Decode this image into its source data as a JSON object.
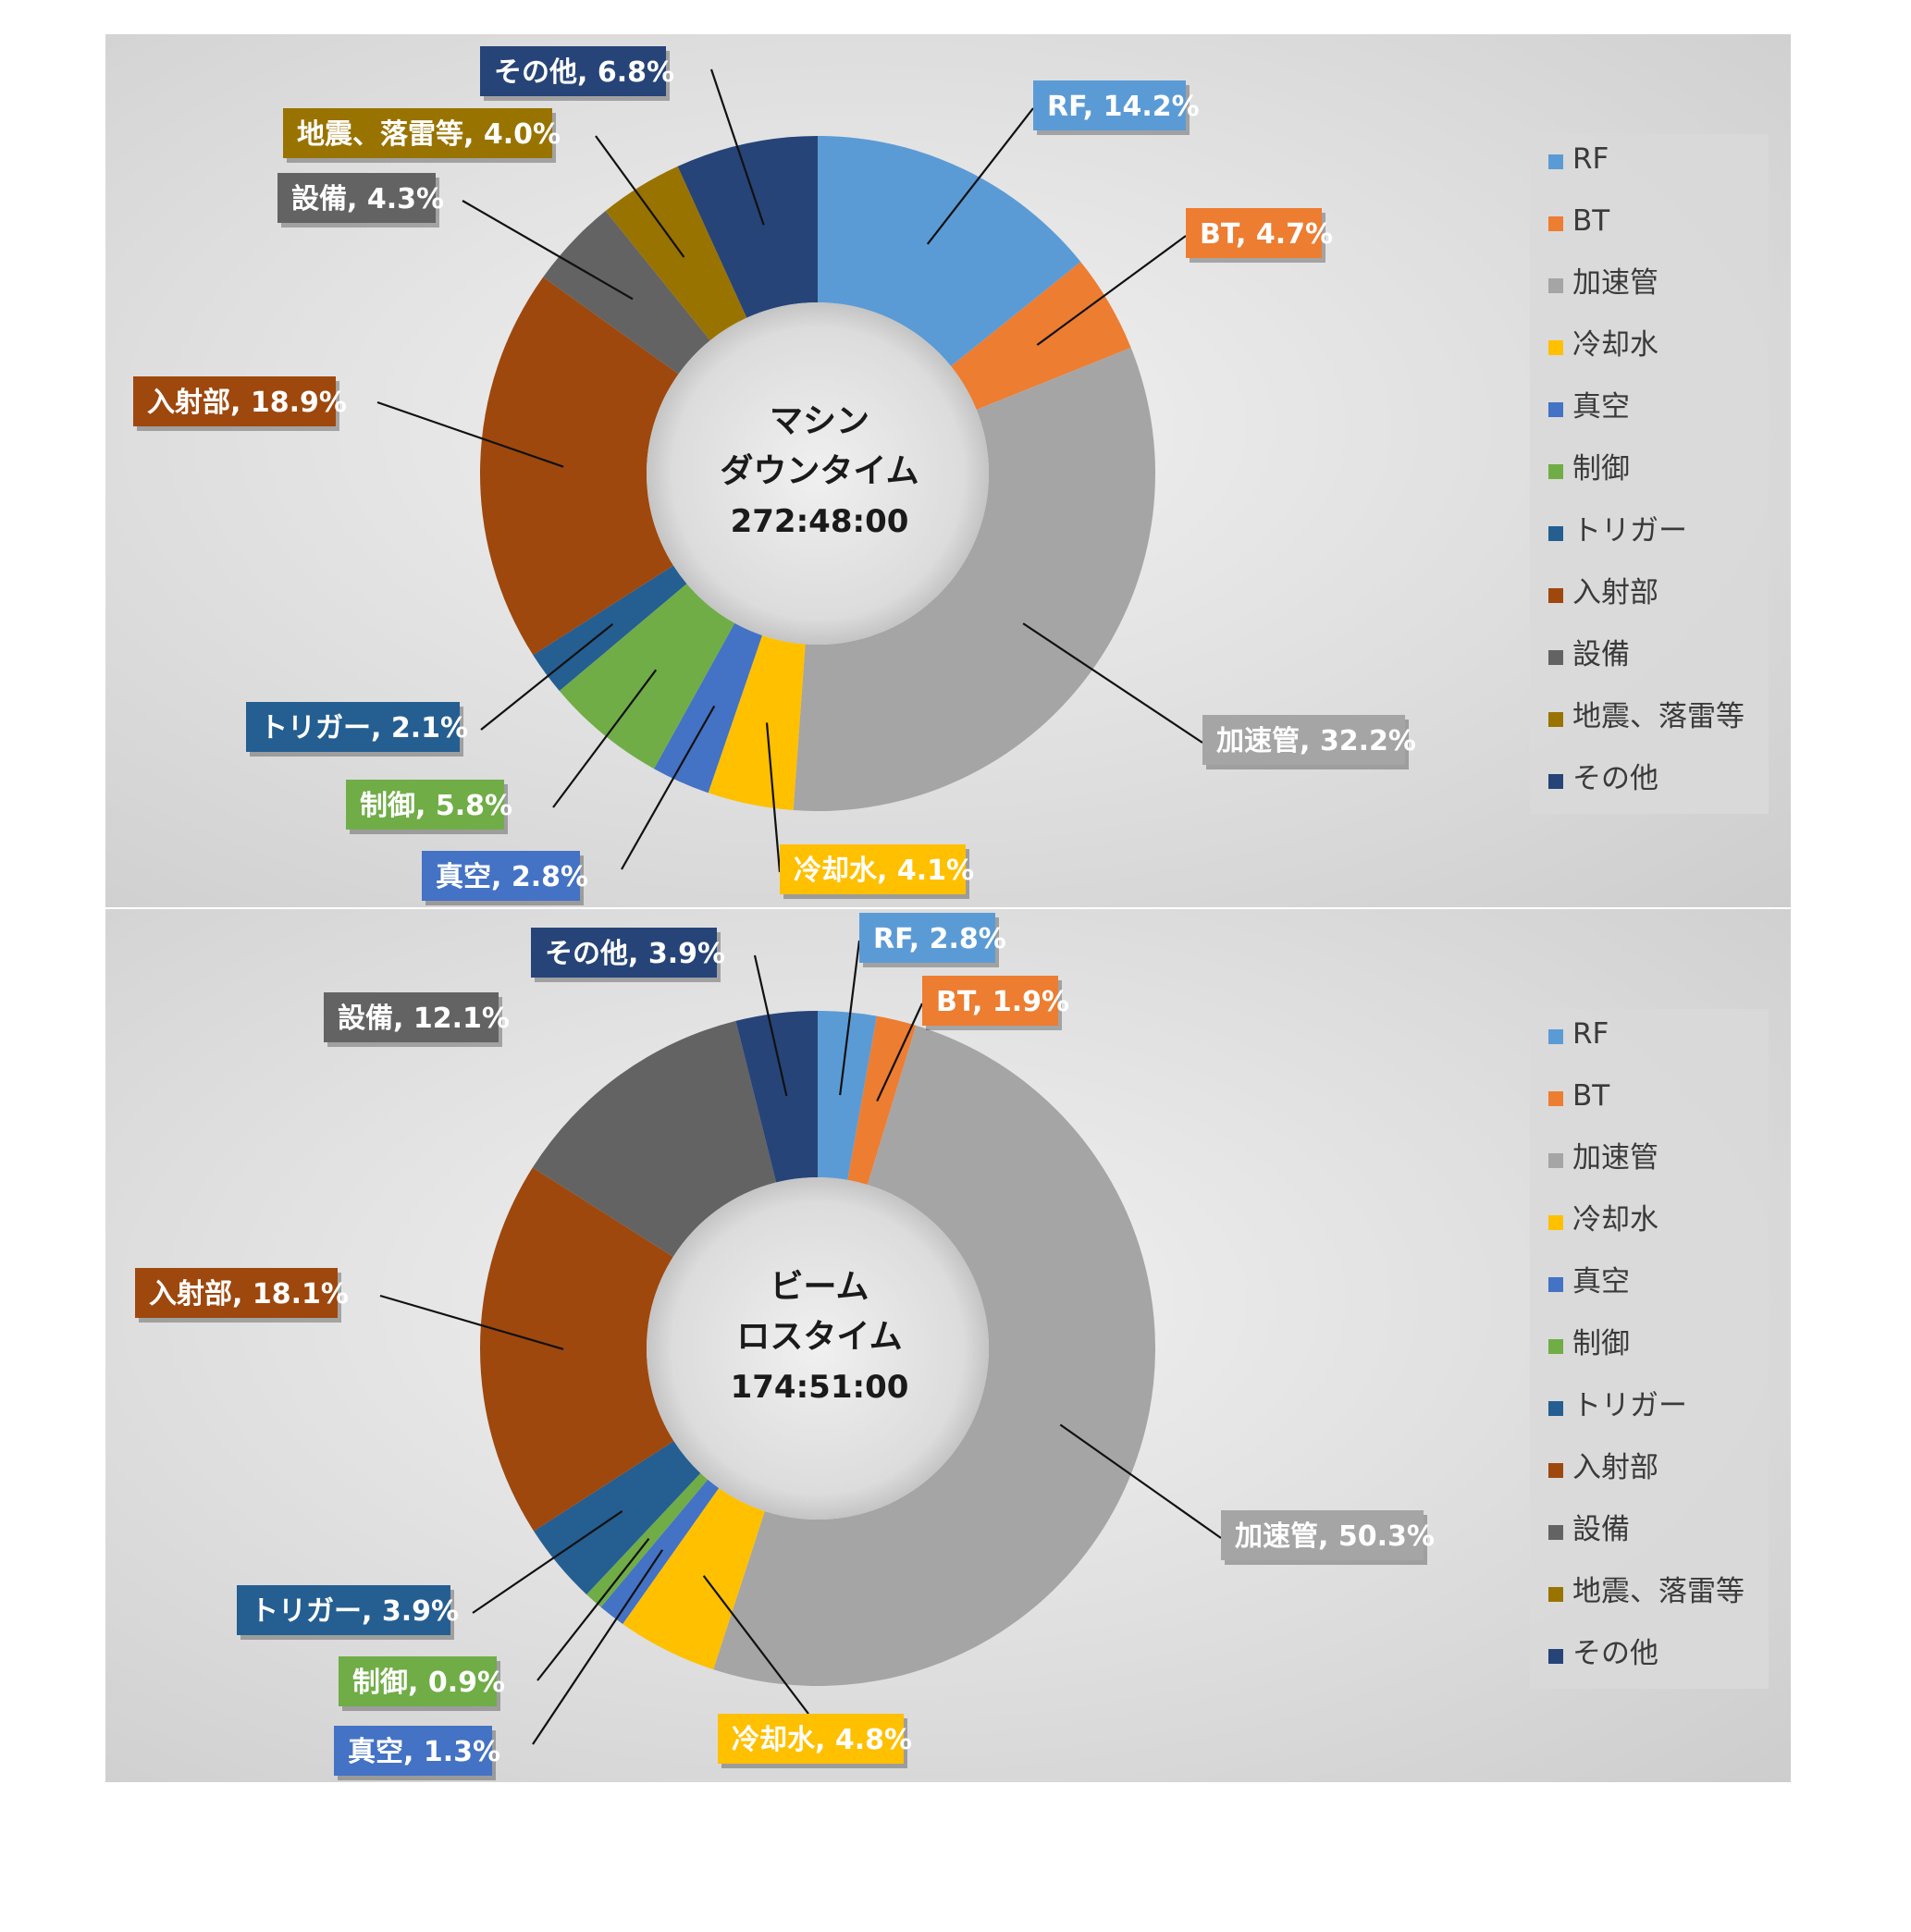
{
  "colors": {
    "RF": "#5b9bd5",
    "BT": "#ed7d31",
    "加速管": "#a5a5a5",
    "冷却水": "#ffc000",
    "真空": "#4472c4",
    "制御": "#70ad47",
    "トリガー": "#255e91",
    "入射部": "#9e480e",
    "設備": "#636363",
    "地震、落雷等": "#997300",
    "その他": "#264478"
  },
  "chart_data": [
    {
      "type": "pie",
      "variant": "donut",
      "center_lines": [
        "マシン",
        "ダウンタイム",
        "272:48:00"
      ],
      "legend": [
        "RF",
        "BT",
        "加速管",
        "冷却水",
        "真空",
        "制御",
        "トリガー",
        "入射部",
        "設備",
        "地震、落雷等",
        "その他"
      ],
      "legend_position": "right",
      "slices": [
        {
          "label": "RF",
          "value": 14.2,
          "text": "RF, 14.2%"
        },
        {
          "label": "BT",
          "value": 4.7,
          "text": "BT, 4.7%"
        },
        {
          "label": "加速管",
          "value": 32.2,
          "text": "加速管, 32.2%"
        },
        {
          "label": "冷却水",
          "value": 4.1,
          "text": "冷却水, 4.1%"
        },
        {
          "label": "真空",
          "value": 2.8,
          "text": "真空, 2.8%"
        },
        {
          "label": "制御",
          "value": 5.8,
          "text": "制御, 5.8%"
        },
        {
          "label": "トリガー",
          "value": 2.1,
          "text": "トリガー, 2.1%"
        },
        {
          "label": "入射部",
          "value": 18.9,
          "text": "入射部, 18.9%"
        },
        {
          "label": "設備",
          "value": 4.3,
          "text": "設備, 4.3%"
        },
        {
          "label": "地震、落雷等",
          "value": 4.0,
          "text": "地震、落雷等, 4.0%"
        },
        {
          "label": "その他",
          "value": 6.8,
          "text": "その他, 6.8%"
        }
      ]
    },
    {
      "type": "pie",
      "variant": "donut",
      "center_lines": [
        "ビーム",
        "ロスタイム",
        "174:51:00"
      ],
      "legend": [
        "RF",
        "BT",
        "加速管",
        "冷却水",
        "真空",
        "制御",
        "トリガー",
        "入射部",
        "設備",
        "地震、落雷等",
        "その他"
      ],
      "legend_position": "right",
      "slices": [
        {
          "label": "RF",
          "value": 2.8,
          "text": "RF, 2.8%"
        },
        {
          "label": "BT",
          "value": 1.9,
          "text": "BT, 1.9%"
        },
        {
          "label": "加速管",
          "value": 50.3,
          "text": "加速管, 50.3%"
        },
        {
          "label": "冷却水",
          "value": 4.8,
          "text": "冷却水, 4.8%"
        },
        {
          "label": "真空",
          "value": 1.3,
          "text": "真空, 1.3%"
        },
        {
          "label": "制御",
          "value": 0.9,
          "text": "制御, 0.9%"
        },
        {
          "label": "トリガー",
          "value": 3.9,
          "text": "トリガー, 3.9%"
        },
        {
          "label": "入射部",
          "value": 18.1,
          "text": "入射部, 18.1%"
        },
        {
          "label": "設備",
          "value": 12.1,
          "text": "設備, 12.1%"
        },
        {
          "label": "地震、落雷等",
          "value": 0.0,
          "text": ""
        },
        {
          "label": "その他",
          "value": 3.9,
          "text": "その他, 3.9%"
        }
      ]
    }
  ]
}
